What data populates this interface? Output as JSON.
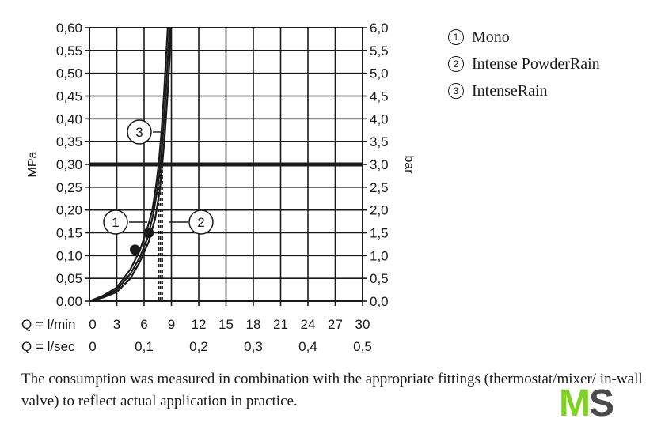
{
  "chart_data": {
    "type": "line",
    "title": "",
    "ylabel_left": "MPa",
    "ylabel_right": "bar",
    "x_axis_rows": [
      {
        "label": "Q = l/min",
        "ticks": [
          "0",
          "3",
          "6",
          "9",
          "12",
          "15",
          "18",
          "21",
          "24",
          "27",
          "30"
        ]
      },
      {
        "label": "Q = l/sec",
        "ticks": [
          "0",
          "0,1",
          "0,2",
          "0,3",
          "0,4",
          "0,5"
        ]
      }
    ],
    "y_ticks_left": [
      "0,00",
      "0,05",
      "0,10",
      "0,15",
      "0,20",
      "0,25",
      "0,30",
      "0,35",
      "0,40",
      "0,45",
      "0,50",
      "0,55",
      "0,60"
    ],
    "y_ticks_right": [
      "0,0",
      "0,5",
      "1,0",
      "1,5",
      "2,0",
      "2,5",
      "3,0",
      "3,5",
      "4,0",
      "4,5",
      "5,0",
      "5,5",
      "6,0"
    ],
    "xlim": [
      0,
      30
    ],
    "ylim": [
      0,
      0.6
    ],
    "grid": true,
    "reference_line": {
      "y": 0.3
    },
    "series": [
      {
        "marker": "1",
        "points": [
          [
            0,
            0
          ],
          [
            1.5,
            0.01
          ],
          [
            3,
            0.025
          ],
          [
            4.5,
            0.06
          ],
          [
            5.5,
            0.095
          ],
          [
            6.4,
            0.14
          ],
          [
            7.0,
            0.19
          ],
          [
            7.5,
            0.25
          ],
          [
            7.8,
            0.3
          ],
          [
            8.1,
            0.37
          ],
          [
            8.4,
            0.46
          ],
          [
            8.6,
            0.53
          ],
          [
            8.8,
            0.6
          ]
        ],
        "flow_at_03": 7.8
      },
      {
        "marker": "2",
        "points": [
          [
            0,
            0
          ],
          [
            1.5,
            0.008
          ],
          [
            3,
            0.02
          ],
          [
            4.5,
            0.05
          ],
          [
            5.5,
            0.085
          ],
          [
            6.5,
            0.13
          ],
          [
            7.2,
            0.18
          ],
          [
            7.7,
            0.24
          ],
          [
            8.0,
            0.3
          ],
          [
            8.3,
            0.37
          ],
          [
            8.6,
            0.46
          ],
          [
            8.8,
            0.53
          ],
          [
            8.95,
            0.6
          ]
        ],
        "flow_at_03": 8.0
      },
      {
        "marker": "3",
        "points": [
          [
            0,
            0
          ],
          [
            1.5,
            0.012
          ],
          [
            3,
            0.03
          ],
          [
            4.5,
            0.07
          ],
          [
            5.5,
            0.11
          ],
          [
            6.3,
            0.155
          ],
          [
            6.9,
            0.2
          ],
          [
            7.3,
            0.25
          ],
          [
            7.6,
            0.3
          ],
          [
            7.9,
            0.37
          ],
          [
            8.2,
            0.46
          ],
          [
            8.4,
            0.53
          ],
          [
            8.6,
            0.6
          ]
        ],
        "flow_at_03": 7.6
      }
    ],
    "markers_on_curve": [
      [
        5,
        0.113
      ],
      [
        6.5,
        0.15
      ]
    ],
    "legend": {
      "placement": "top-right",
      "items": [
        {
          "num": "1",
          "label": "Mono"
        },
        {
          "num": "2",
          "label": "Intense PowderRain"
        },
        {
          "num": "3",
          "label": "IntenseRain"
        }
      ]
    }
  },
  "caption": "The consumption was measured in combination with the appropriate fittings (thermostat/mixer/ in-wall valve) to reflect actual application in practice.",
  "logo": {
    "text_m": "M",
    "text_s": "S",
    "color_m": "#7ed321",
    "color_s": "#4a4a4a"
  }
}
